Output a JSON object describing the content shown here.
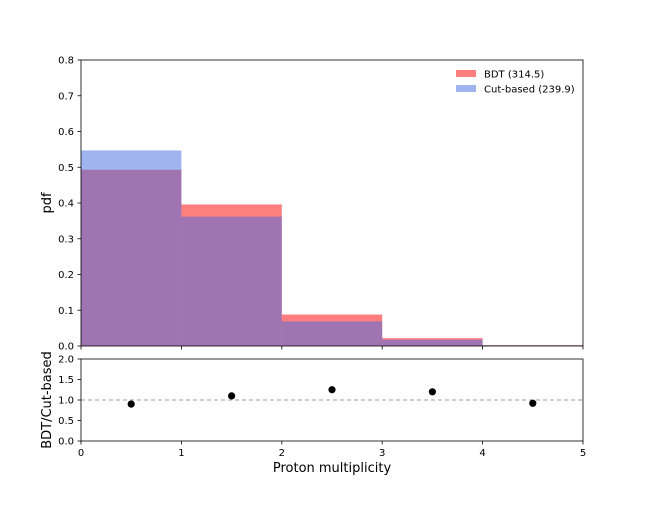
{
  "chart_data": [
    {
      "type": "bar",
      "subtype": "overlaid-histogram",
      "xlabel": "",
      "ylabel": "pdf",
      "xlim": [
        0,
        5
      ],
      "ylim": [
        0,
        0.8
      ],
      "x_ticks": [
        "0",
        "1",
        "2",
        "3",
        "4",
        "5"
      ],
      "y_ticks": [
        "0.0",
        "0.1",
        "0.2",
        "0.3",
        "0.4",
        "0.5",
        "0.6",
        "0.7",
        "0.8"
      ],
      "bin_edges": [
        0,
        1,
        2,
        3,
        4,
        5
      ],
      "grid": false,
      "legend_position": "top-right",
      "series": [
        {
          "name": "BDT (314.5)",
          "color": "#ff0000",
          "alpha": 0.5,
          "values": [
            0.493,
            0.396,
            0.088,
            0.022,
            0.002
          ]
        },
        {
          "name": "Cut-based (239.9)",
          "color": "#4169e1",
          "alpha": 0.5,
          "values": [
            0.547,
            0.362,
            0.069,
            0.018,
            0.002
          ]
        }
      ]
    },
    {
      "type": "scatter",
      "xlabel": "Proton multiplicity",
      "ylabel": "BDT/Cut-based",
      "xlim": [
        0,
        5
      ],
      "ylim": [
        0,
        2
      ],
      "x_ticks": [
        "0",
        "1",
        "2",
        "3",
        "4",
        "5"
      ],
      "y_ticks": [
        "0.0",
        "0.5",
        "1.0",
        "1.5",
        "2.0"
      ],
      "reference_line": 1.0,
      "grid": false,
      "x": [
        0.5,
        1.5,
        2.5,
        3.5,
        4.5
      ],
      "y": [
        0.9,
        1.1,
        1.25,
        1.2,
        0.92
      ],
      "marker_color": "#000000"
    }
  ]
}
